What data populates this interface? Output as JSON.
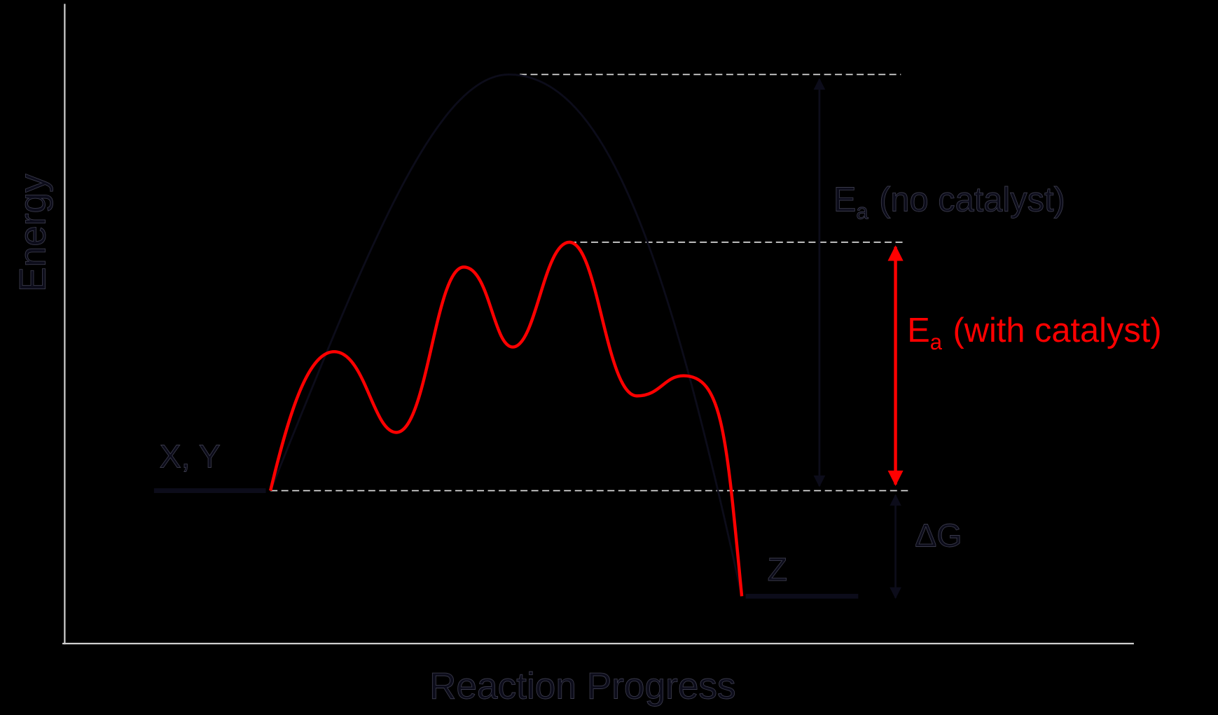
{
  "diagram": {
    "y_axis_label": "Energy",
    "x_axis_label": "Reaction Progress",
    "reactants_label": "X, Y",
    "product_label": "Z",
    "ea_no_catalyst": {
      "symbol": "E",
      "subscript": "a",
      "text": "(no catalyst)"
    },
    "ea_with_catalyst": {
      "symbol": "E",
      "subscript": "a",
      "text": "(with catalyst)"
    },
    "delta_g_label": "ΔG"
  }
}
